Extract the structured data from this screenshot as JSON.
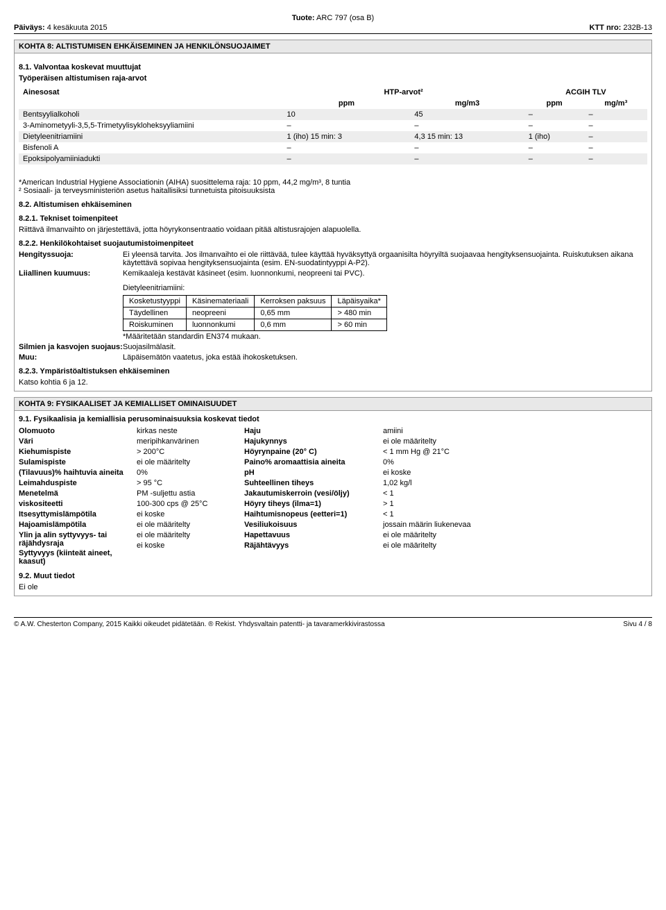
{
  "header": {
    "date_label": "Päiväys:",
    "date_value": "4 kesäkuuta 2015",
    "product_label": "Tuote:",
    "product_value": "ARC 797 (osa B)",
    "ktt_label": "KTT nro:",
    "ktt_value": "232B-13"
  },
  "section8": {
    "title": "KOHTA 8: ALTISTUMISEN EHKÄISEMINEN JA HENKILÖNSUOJAIMET",
    "s81": "8.1. Valvontaa koskevat muuttujat",
    "work_limits": "Työperäisen altistumisen raja-arvot",
    "components": "Ainesosat",
    "htpcol": "HTP-arvot²",
    "acgihcol": "ACGIH TLV",
    "ppm": "ppm",
    "mgm3": "mg/m3",
    "mgm3sup": "mg/m³",
    "rows": [
      {
        "name": "Bentsyylialkoholi",
        "c1": "10",
        "c2": "45",
        "c3": "–",
        "c4": "–",
        "shade": true
      },
      {
        "name": "3-Aminometyyli-3,5,5-Trimetyylisykloheksyyliamiini",
        "c1": "–",
        "c2": "–",
        "c3": "–",
        "c4": "–",
        "shade": false
      },
      {
        "name": "Dietyleenitriamiini",
        "c1": "1 (iho) 15 min: 3",
        "c2": "4,3 15 min: 13",
        "c3": "1 (iho)",
        "c4": "–",
        "shade": true
      },
      {
        "name": "Bisfenoli A",
        "c1": "–",
        "c2": "–",
        "c3": "–",
        "c4": "–",
        "shade": false
      },
      {
        "name": "Epoksipolyamiiniadukti",
        "c1": "–",
        "c2": "–",
        "c3": "–",
        "c4": "–",
        "shade": true
      }
    ],
    "note_aiha": "*American Industrial Hygiene Associationin (AIHA) suosittelema raja: 10 ppm, 44,2 mg/m³, 8 tuntia",
    "note_social": "² Sosiaali- ja terveysministeriön asetus haitallisiksi tunnetuista pitoisuuksista",
    "s82": "8.2. Altistumisen ehkäiseminen",
    "s821": "8.2.1. Tekniset toimenpiteet",
    "s821_text": "Riittävä ilmanvaihto on järjestettävä, jotta höyrykonsentraatio voidaan pitää altistusrajojen alapuolella.",
    "s822": "8.2.2. Henkilökohtaiset suojautumistoimenpiteet",
    "resp_label": "Hengityssuoja:",
    "resp_text": "Ei yleensä tarvita. Jos ilmanvaihto ei ole riittävää, tulee käyttää hyväksyttyä orgaanisilta höyryiltä suojaavaa hengityksensuojainta. Ruiskutuksen aikana käytettävä sopivaa hengityksensuojainta (esim. EN-suodatintyyppi A-P2).",
    "heat_label": "Liiallinen kuumuus:",
    "heat_text": "Kemikaaleja kestävät käsineet (esim. luonnonkumi, neopreeni tai PVC).",
    "diethyl": "Dietyleenitriamiini:",
    "mat_headers": [
      "Kosketustyyppi",
      "Käsinemateriaali",
      "Kerroksen paksuus",
      "Läpäisyaika*"
    ],
    "mat_rows": [
      [
        "Täydellinen",
        "neopreeni",
        "0,65 mm",
        "> 480 min"
      ],
      [
        "Roiskuminen",
        "luonnonkumi",
        "0,6 mm",
        "> 60 min"
      ]
    ],
    "mat_note": "*Määritetään standardin EN374 mukaan.",
    "eyes_label": "Silmien ja kasvojen suojaus:",
    "eyes_text": "Suojasilmälasit.",
    "other_label": "Muu:",
    "other_text": "Läpäisemätön vaatetus, joka estää ihokosketuksen.",
    "s823": "8.2.3. Ympäristöaltistuksen ehkäiseminen",
    "s823_text": "Katso kohtia 6 ja 12."
  },
  "section9": {
    "title": "KOHTA 9: FYSIKAALISET JA KEMIALLISET OMINAISUUDET",
    "s91": "9.1. Fysikaalisia ja kemiallisia perusominaisuuksia koskevat tiedot",
    "left_labels": [
      "Olomuoto",
      "Väri",
      "Kiehumispiste",
      "Sulamispiste",
      "(Tilavuus)% haihtuvia aineita",
      "Leimahduspiste",
      "Menetelmä",
      "viskositeetti",
      "Itsesyttymislämpötila",
      "Hajoamislämpötila",
      "Ylin ja alin syttyvyys- tai räjähdysraja",
      "Syttyvyys (kiinteät aineet, kaasut)"
    ],
    "left_vals": [
      "kirkas neste",
      "meripihkanvärinen",
      "> 200°C",
      "ei ole määritelty",
      "0%",
      "> 95 °C",
      "PM  -suljettu astia",
      "100-300 cps @ 25°C",
      "ei koske",
      "ei ole määritelty",
      "ei ole määritelty",
      "ei koske"
    ],
    "right_labels": [
      "Haju",
      "Hajukynnys",
      "Höyrynpaine (20° C)",
      "Paino% aromaattisia aineita",
      "pH",
      "Suhteellinen tiheys",
      "Jakautumiskerroin (vesi/öljy)",
      "Höyry tiheys (ilma=1)",
      "Haihtumisnopeus (eetteri=1)",
      "Vesiliukoisuus",
      "Hapettavuus",
      "Räjähtävyys"
    ],
    "right_vals": [
      "amiini",
      "ei ole määritelty",
      "< 1 mm Hg @ 21°C",
      "0%",
      "ei koske",
      "1,02 kg/l",
      "< 1",
      "> 1",
      "< 1",
      "jossain määrin liukenevaa",
      "ei ole määritelty",
      "ei ole määritelty"
    ],
    "s92": "9.2. Muut tiedot",
    "s92_text": "Ei ole"
  },
  "footer": {
    "copyright": "© A.W. Chesterton Company, 2015 Kaikki oikeudet pidätetään.   ® Rekist. Yhdysvaltain patentti- ja tavaramerkkivirastossa",
    "page": "Sivu 4 / 8"
  }
}
